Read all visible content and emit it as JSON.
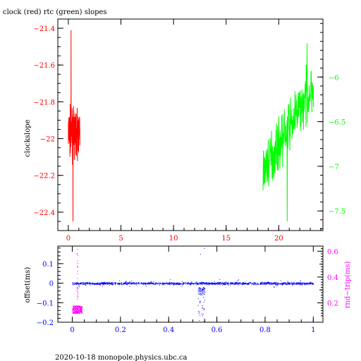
{
  "colors": {
    "red": "#ff0000",
    "green": "#00ff00",
    "blue": "#0000ff",
    "magenta": "#ff00ff",
    "black": "#000000"
  },
  "footer": "2020-10-18  monopole.physics.ubc.ca",
  "chart_data": [
    {
      "type": "line",
      "title": "clock (red) rtc (green) slopes",
      "ylabel": "clockslope",
      "xlim": [
        -1,
        24.2
      ],
      "ylim": [
        -22.5,
        -21.35
      ],
      "y2lim": [
        -7.72,
        -5.35
      ],
      "xticks": [
        0,
        5,
        10,
        15,
        20
      ],
      "yticks": [
        -21.4,
        -21.6,
        -21.8,
        -22,
        -22.2,
        -22.4
      ],
      "y2ticks": [
        -6,
        -6.5,
        -7,
        -7.5
      ],
      "xtick_labels": [
        "0",
        "5",
        "10",
        "15",
        "20"
      ],
      "ytick_labels": [
        "−21.4",
        "−21.6",
        "−21.8",
        "−22",
        "−22.2",
        "−22.4"
      ],
      "y2tick_labels": [
        "−6",
        "−6.5",
        "−7",
        "−7.5"
      ],
      "series": [
        {
          "color": "#ff0000",
          "axis": "left",
          "x_range": [
            0,
            1.1
          ],
          "center": -21.97,
          "spread": 0.16,
          "peak_max": -21.41,
          "peak_min": -22.45
        },
        {
          "color": "#00ff00",
          "axis": "right",
          "x_range": [
            18.5,
            23.3
          ],
          "start": -7.05,
          "end": -6.1,
          "spread": 0.32,
          "peak_max": -5.62,
          "peak_min": -7.62
        }
      ]
    },
    {
      "type": "scatter",
      "ylabel": "offset(ms)",
      "y2label": "rnd−trip(ms)",
      "xlim": [
        -0.06,
        1.04
      ],
      "ylim": [
        -0.2,
        0.19
      ],
      "y2lim": [
        0.05,
        0.64
      ],
      "xticks": [
        0,
        0.2,
        0.4,
        0.6,
        0.8,
        1
      ],
      "yticks": [
        0.1,
        0,
        -0.1,
        -0.2
      ],
      "y2ticks": [
        0.6,
        0.4,
        0.2
      ],
      "minor_y2ticks": [
        0.5,
        0.3
      ],
      "xtick_labels": [
        "0",
        "0.2",
        "0.4",
        "0.6",
        "0.8",
        "1"
      ],
      "ytick_labels": [
        "0.1",
        "0",
        "−0.1",
        "−0.2"
      ],
      "y2tick_labels": [
        "0.6",
        "0.4",
        "0.2"
      ],
      "series": [
        {
          "color": "#0000ff",
          "axis": "left",
          "x_range": [
            0,
            1
          ],
          "center": 0,
          "spread": 0.006,
          "anomaly_x": [
            0.52,
            0.55
          ],
          "anomaly_min": -0.2,
          "anomaly_max": 0.18
        },
        {
          "color": "#ff00ff",
          "axis": "right",
          "x_range": [
            0,
            0.04
          ],
          "center": 0.15,
          "spread": 0.03,
          "outlier_max": 0.62
        }
      ]
    }
  ]
}
